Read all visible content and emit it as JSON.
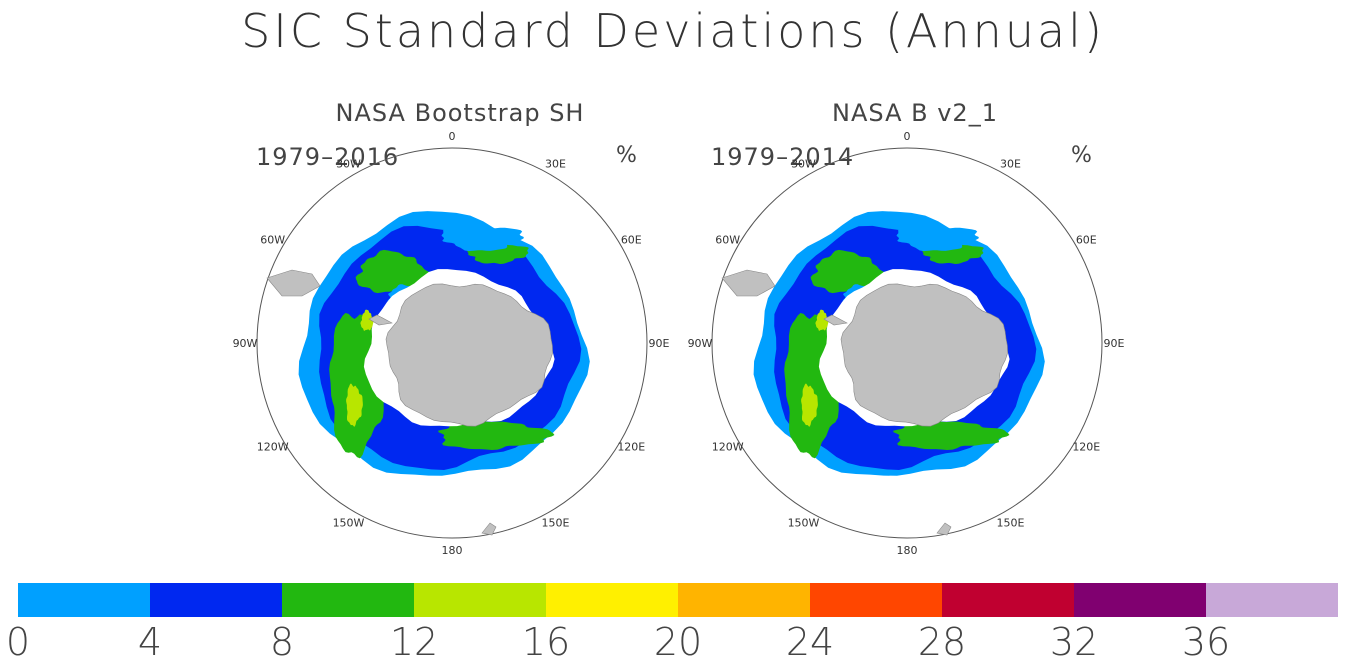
{
  "title": "SIC Standard Deviations (Annual)",
  "panels": [
    {
      "title": "NASA Bootstrap SH",
      "period": "1979–2016",
      "unit": "%"
    },
    {
      "title": "NASA B v2_1",
      "period": "1979–2014",
      "unit": "%"
    }
  ],
  "longitude_labels": [
    "0",
    "30E",
    "60E",
    "90E",
    "120E",
    "150E",
    "180",
    "150W",
    "120W",
    "90W",
    "60W",
    "30W"
  ],
  "colorbar": {
    "colors": [
      "#00a0ff",
      "#0028f0",
      "#22b810",
      "#b8e600",
      "#fff000",
      "#ffb400",
      "#ff4600",
      "#c00030",
      "#800070",
      "#c8a8d8"
    ],
    "labels": [
      "0",
      "4",
      "8",
      "12",
      "16",
      "20",
      "24",
      "28",
      "32",
      "36"
    ]
  },
  "map_colors": {
    "land": "#c0c0c0",
    "coast": "#888888",
    "ice_shelf": "#ffffff"
  }
}
